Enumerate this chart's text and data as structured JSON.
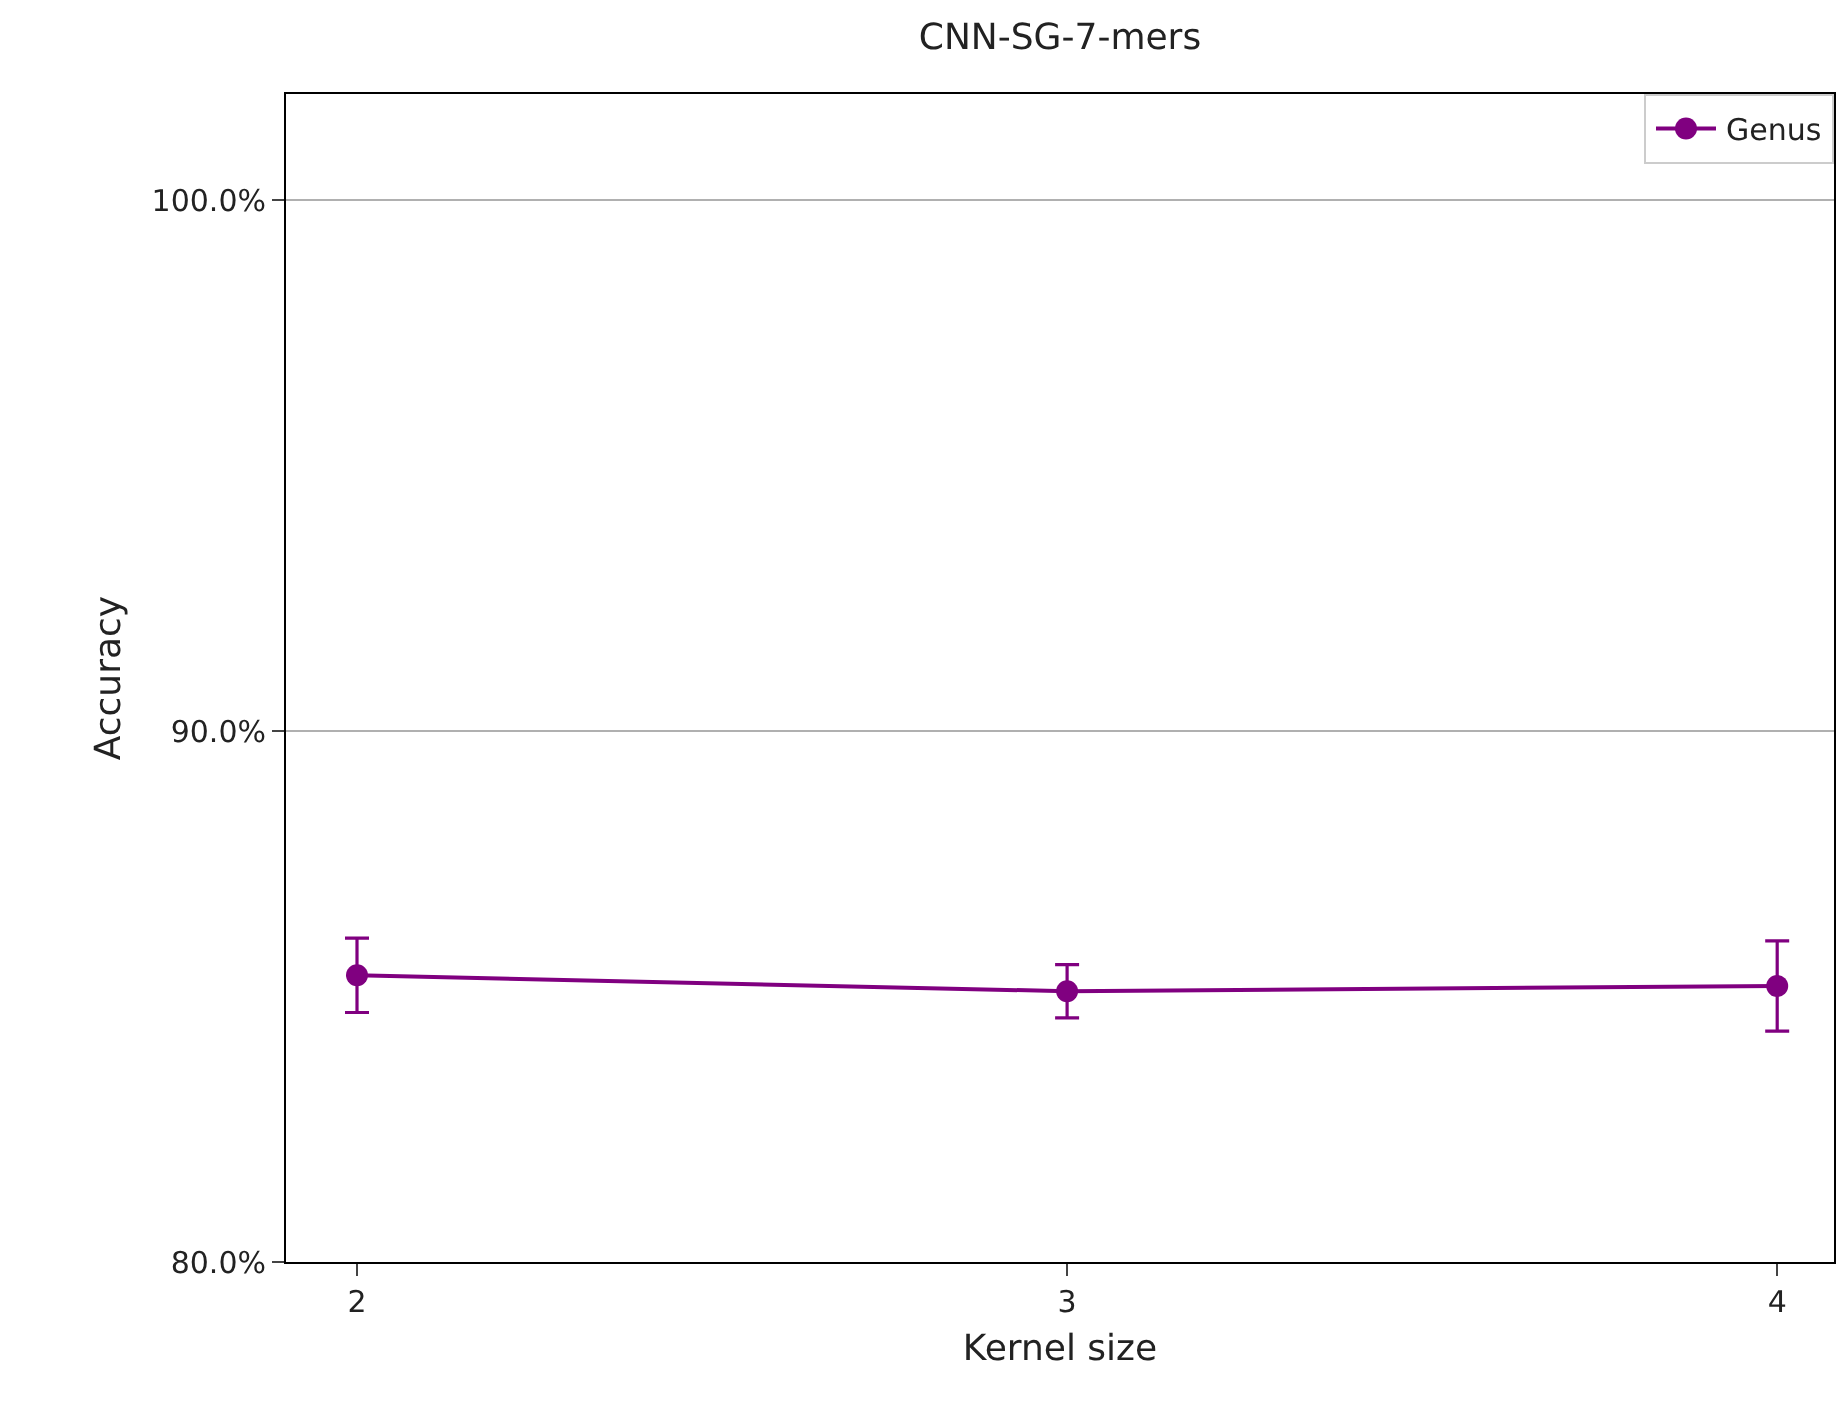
{
  "chart_data": {
    "type": "line",
    "title": "CNN-SG-7-mers",
    "xlabel": "Kernel size",
    "ylabel": "Accuracy",
    "x": [
      2,
      3,
      4
    ],
    "series": [
      {
        "name": "Genus",
        "color": "#800080",
        "values": [
          85.4,
          85.1,
          85.2
        ],
        "errors": [
          0.7,
          0.5,
          0.85
        ]
      }
    ],
    "xlim": [
      1.9,
      4.08
    ],
    "xticks": [
      2,
      3,
      4
    ],
    "ylim": [
      80,
      102
    ],
    "yticks": [
      {
        "value": 80,
        "label": "80.0%"
      },
      {
        "value": 90,
        "label": "90.0%"
      },
      {
        "value": 100,
        "label": "100.0%"
      }
    ],
    "grid": "y",
    "legend": "top right",
    "marker": "circle",
    "line_style": "solid"
  }
}
